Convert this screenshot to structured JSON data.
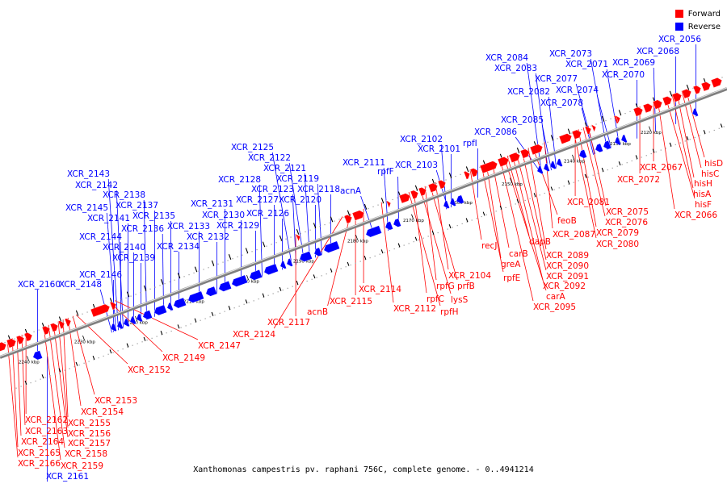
{
  "colors": {
    "forward": "#ff0000",
    "reverse": "#0000ff",
    "backbone": "#7f7f7f"
  },
  "legend": [
    {
      "label": "Forward",
      "color": "#ff0000"
    },
    {
      "label": "Reverse",
      "color": "#0000ff"
    }
  ],
  "caption": "Xanthomonas campestris pv. raphani 756C, complete genome. - 0..4941214",
  "scale_ticks": [
    "2120 kbp",
    "2130 kbp",
    "2140 kbp",
    "2150 kbp",
    "2160 kbp",
    "2170 kbp",
    "2180 kbp",
    "2190 kbp",
    "2200 kbp",
    "2210 kbp",
    "2220 kbp",
    "2230 kbp",
    "2240 kbp"
  ],
  "genes_reverse": [
    "XCR_2056",
    "XCR_2068",
    "XCR_2069",
    "XCR_2070",
    "XCR_2071",
    "XCR_2073",
    "XCR_2074",
    "XCR_2077",
    "XCR_2078",
    "XCR_2082",
    "XCR_2083",
    "XCR_2084",
    "XCR_2085",
    "XCR_2086",
    "rpfI",
    "XCR_2101",
    "XCR_2102",
    "XCR_2103",
    "rpfF",
    "XCR_2111",
    "acnA",
    "XCR_2118",
    "XCR_2119",
    "XCR_2120",
    "XCR_2121",
    "XCR_2122",
    "XCR_2123",
    "XCR_2125",
    "XCR_2126",
    "XCR_2127",
    "XCR_2128",
    "XCR_2129",
    "XCR_2130",
    "XCR_2131",
    "XCR_2132",
    "XCR_2133",
    "XCR_2134",
    "XCR_2135",
    "XCR_2136",
    "XCR_2137",
    "XCR_2138",
    "XCR_2139",
    "XCR_2140",
    "XCR_2141",
    "XCR_2142",
    "XCR_2143",
    "XCR_2144",
    "XCR_2145",
    "XCR_2146",
    "XCR_2148",
    "XCR_2160",
    "XCR_2161"
  ],
  "genes_forward": [
    "hisD",
    "hisC",
    "hisH",
    "hisA",
    "hisF",
    "XCR_2066",
    "XCR_2067",
    "XCR_2072",
    "XCR_2075",
    "XCR_2076",
    "XCR_2079",
    "XCR_2080",
    "XCR_2081",
    "XCR_2087",
    "feoB",
    "XCR_2089",
    "XCR_2090",
    "XCR_2091",
    "XCR_2092",
    "carA",
    "XCR_2095",
    "dapB",
    "carB",
    "greA",
    "rpfE",
    "recJ",
    "XCR_2104",
    "prfB",
    "rpfG",
    "lysS",
    "rpfC",
    "rpfH",
    "XCR_2112",
    "XCR_2114",
    "XCR_2115",
    "acnB",
    "XCR_2117",
    "XCR_2124",
    "XCR_2147",
    "XCR_2149",
    "XCR_2152",
    "XCR_2153",
    "XCR_2154",
    "XCR_2155",
    "XCR_2156",
    "XCR_2157",
    "XCR_2158",
    "XCR_2159",
    "XCR_2162",
    "XCR_2163",
    "XCR_2164",
    "XCR_2165",
    "XCR_2166"
  ]
}
